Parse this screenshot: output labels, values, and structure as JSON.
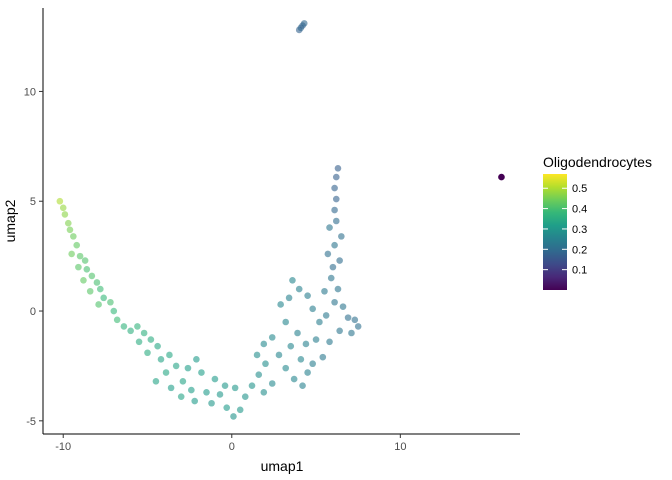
{
  "chart_data": {
    "type": "scatter",
    "xlabel": "umap1",
    "ylabel": "umap2",
    "xlim": [
      -11.2,
      17.1
    ],
    "ylim": [
      -5.6,
      13.8
    ],
    "x_ticks": [
      -10,
      0,
      10
    ],
    "y_ticks": [
      -5,
      0,
      5,
      10
    ],
    "x_tick_labels": [
      "-10",
      "0",
      "10"
    ],
    "y_tick_labels": [
      "-5",
      "0",
      "5",
      "10"
    ],
    "grid": false,
    "legend_position": "right",
    "color_legend": {
      "title": "Oligodendrocytes",
      "palette": "viridis",
      "range": [
        0.0,
        0.57
      ],
      "ticks": [
        0.1,
        0.2,
        0.3,
        0.4,
        0.5
      ],
      "tick_labels": [
        "0.1",
        "0.2",
        "0.3",
        "0.4",
        "0.5"
      ],
      "colors": [
        "#440154",
        "#482878",
        "#3E4A89",
        "#31688E",
        "#26828E",
        "#1F9E89",
        "#35B779",
        "#6DCD59",
        "#B4DE2C",
        "#FDE725"
      ]
    },
    "points": [
      {
        "x": -10.2,
        "y": 5.0,
        "value": 0.5
      },
      {
        "x": -10.0,
        "y": 4.7,
        "value": 0.48
      },
      {
        "x": -9.9,
        "y": 4.4,
        "value": 0.47
      },
      {
        "x": -9.7,
        "y": 4.0,
        "value": 0.46
      },
      {
        "x": -9.6,
        "y": 3.7,
        "value": 0.45
      },
      {
        "x": -9.4,
        "y": 3.4,
        "value": 0.44
      },
      {
        "x": -9.2,
        "y": 3.0,
        "value": 0.43
      },
      {
        "x": -9.5,
        "y": 2.6,
        "value": 0.44
      },
      {
        "x": -9.0,
        "y": 2.5,
        "value": 0.42
      },
      {
        "x": -8.7,
        "y": 2.3,
        "value": 0.41
      },
      {
        "x": -9.1,
        "y": 2.0,
        "value": 0.42
      },
      {
        "x": -8.6,
        "y": 1.9,
        "value": 0.4
      },
      {
        "x": -8.3,
        "y": 1.6,
        "value": 0.41
      },
      {
        "x": -8.8,
        "y": 1.4,
        "value": 0.43
      },
      {
        "x": -8.0,
        "y": 1.3,
        "value": 0.4
      },
      {
        "x": -7.8,
        "y": 1.0,
        "value": 0.39
      },
      {
        "x": -8.4,
        "y": 0.9,
        "value": 0.42
      },
      {
        "x": -7.6,
        "y": 0.6,
        "value": 0.38
      },
      {
        "x": -7.2,
        "y": 0.4,
        "value": 0.4
      },
      {
        "x": -7.9,
        "y": 0.3,
        "value": 0.41
      },
      {
        "x": -7.0,
        "y": 0.0,
        "value": 0.38
      },
      {
        "x": -6.8,
        "y": -0.4,
        "value": 0.39
      },
      {
        "x": -6.4,
        "y": -0.7,
        "value": 0.37
      },
      {
        "x": -6.0,
        "y": -0.9,
        "value": 0.36
      },
      {
        "x": -5.6,
        "y": -0.7,
        "value": 0.37
      },
      {
        "x": -5.2,
        "y": -1.0,
        "value": 0.36
      },
      {
        "x": -5.5,
        "y": -1.4,
        "value": 0.35
      },
      {
        "x": -4.8,
        "y": -1.3,
        "value": 0.35
      },
      {
        "x": -4.4,
        "y": -1.6,
        "value": 0.34
      },
      {
        "x": -5.0,
        "y": -1.9,
        "value": 0.35
      },
      {
        "x": -4.2,
        "y": -2.2,
        "value": 0.33
      },
      {
        "x": -3.7,
        "y": -2.0,
        "value": 0.34
      },
      {
        "x": -3.3,
        "y": -2.5,
        "value": 0.33
      },
      {
        "x": -3.9,
        "y": -2.8,
        "value": 0.34
      },
      {
        "x": -4.5,
        "y": -3.2,
        "value": 0.33
      },
      {
        "x": -3.6,
        "y": -3.5,
        "value": 0.32
      },
      {
        "x": -2.9,
        "y": -3.2,
        "value": 0.33
      },
      {
        "x": -2.6,
        "y": -2.6,
        "value": 0.32
      },
      {
        "x": -2.1,
        "y": -2.2,
        "value": 0.31
      },
      {
        "x": -1.8,
        "y": -2.8,
        "value": 0.32
      },
      {
        "x": -2.4,
        "y": -3.6,
        "value": 0.32
      },
      {
        "x": -3.0,
        "y": -3.9,
        "value": 0.33
      },
      {
        "x": -2.2,
        "y": -4.1,
        "value": 0.31
      },
      {
        "x": -1.5,
        "y": -3.7,
        "value": 0.31
      },
      {
        "x": -1.2,
        "y": -4.2,
        "value": 0.3
      },
      {
        "x": -0.7,
        "y": -3.8,
        "value": 0.3
      },
      {
        "x": -0.3,
        "y": -4.4,
        "value": 0.31
      },
      {
        "x": 0.1,
        "y": -4.8,
        "value": 0.29
      },
      {
        "x": 0.5,
        "y": -4.5,
        "value": 0.3
      },
      {
        "x": 0.8,
        "y": -3.9,
        "value": 0.29
      },
      {
        "x": 0.2,
        "y": -3.5,
        "value": 0.3
      },
      {
        "x": -0.4,
        "y": -3.4,
        "value": 0.3
      },
      {
        "x": -1.0,
        "y": -3.1,
        "value": 0.31
      },
      {
        "x": 1.2,
        "y": -3.4,
        "value": 0.29
      },
      {
        "x": 1.6,
        "y": -2.9,
        "value": 0.28
      },
      {
        "x": 1.9,
        "y": -3.7,
        "value": 0.28
      },
      {
        "x": 2.4,
        "y": -3.3,
        "value": 0.27
      },
      {
        "x": 2.0,
        "y": -2.4,
        "value": 0.28
      },
      {
        "x": 1.5,
        "y": -2.0,
        "value": 0.28
      },
      {
        "x": 1.9,
        "y": -1.5,
        "value": 0.27
      },
      {
        "x": 2.4,
        "y": -1.2,
        "value": 0.27
      },
      {
        "x": 2.8,
        "y": -2.0,
        "value": 0.26
      },
      {
        "x": 3.2,
        "y": -2.6,
        "value": 0.27
      },
      {
        "x": 3.7,
        "y": -3.1,
        "value": 0.26
      },
      {
        "x": 4.2,
        "y": -3.4,
        "value": 0.25
      },
      {
        "x": 4.5,
        "y": -2.8,
        "value": 0.25
      },
      {
        "x": 4.1,
        "y": -2.2,
        "value": 0.26
      },
      {
        "x": 3.5,
        "y": -1.6,
        "value": 0.26
      },
      {
        "x": 3.9,
        "y": -1.0,
        "value": 0.25
      },
      {
        "x": 4.4,
        "y": -1.5,
        "value": 0.25
      },
      {
        "x": 3.2,
        "y": -0.5,
        "value": 0.26
      },
      {
        "x": 2.9,
        "y": 0.3,
        "value": 0.26
      },
      {
        "x": 3.4,
        "y": 0.6,
        "value": 0.25
      },
      {
        "x": 3.6,
        "y": 1.4,
        "value": 0.26
      },
      {
        "x": 4.0,
        "y": 1.0,
        "value": 0.25
      },
      {
        "x": 4.5,
        "y": 0.7,
        "value": 0.24
      },
      {
        "x": 4.8,
        "y": 0.1,
        "value": 0.24
      },
      {
        "x": 5.2,
        "y": -0.5,
        "value": 0.24
      },
      {
        "x": 5.0,
        "y": -1.3,
        "value": 0.24
      },
      {
        "x": 5.4,
        "y": -2.1,
        "value": 0.23
      },
      {
        "x": 4.8,
        "y": -2.4,
        "value": 0.24
      },
      {
        "x": 5.8,
        "y": -1.4,
        "value": 0.23
      },
      {
        "x": 5.6,
        "y": -0.2,
        "value": 0.23
      },
      {
        "x": 6.1,
        "y": 0.4,
        "value": 0.22
      },
      {
        "x": 5.5,
        "y": 0.9,
        "value": 0.23
      },
      {
        "x": 5.9,
        "y": 1.5,
        "value": 0.22
      },
      {
        "x": 6.3,
        "y": 1.0,
        "value": 0.22
      },
      {
        "x": 6.6,
        "y": 0.2,
        "value": 0.22
      },
      {
        "x": 6.9,
        "y": -0.3,
        "value": 0.21
      },
      {
        "x": 7.3,
        "y": -0.4,
        "value": 0.21
      },
      {
        "x": 7.5,
        "y": -0.7,
        "value": 0.21
      },
      {
        "x": 7.1,
        "y": -1.0,
        "value": 0.22
      },
      {
        "x": 6.4,
        "y": -0.9,
        "value": 0.22
      },
      {
        "x": 6.0,
        "y": 2.0,
        "value": 0.2
      },
      {
        "x": 6.4,
        "y": 2.3,
        "value": 0.2
      },
      {
        "x": 5.7,
        "y": 2.6,
        "value": 0.21
      },
      {
        "x": 6.1,
        "y": 3.0,
        "value": 0.22
      },
      {
        "x": 6.5,
        "y": 3.4,
        "value": 0.21
      },
      {
        "x": 5.8,
        "y": 3.8,
        "value": 0.22
      },
      {
        "x": 6.2,
        "y": 4.1,
        "value": 0.2
      },
      {
        "x": 6.1,
        "y": 4.6,
        "value": 0.19
      },
      {
        "x": 6.2,
        "y": 5.1,
        "value": 0.18
      },
      {
        "x": 6.1,
        "y": 5.6,
        "value": 0.18
      },
      {
        "x": 6.2,
        "y": 6.1,
        "value": 0.17
      },
      {
        "x": 6.3,
        "y": 6.5,
        "value": 0.17
      },
      {
        "x": 4.0,
        "y": 12.8,
        "value": 0.18
      },
      {
        "x": 4.1,
        "y": 12.9,
        "value": 0.19
      },
      {
        "x": 4.2,
        "y": 13.0,
        "value": 0.18
      },
      {
        "x": 4.3,
        "y": 13.1,
        "value": 0.19
      },
      {
        "x": 16.0,
        "y": 6.1,
        "value": 0.0
      }
    ]
  }
}
